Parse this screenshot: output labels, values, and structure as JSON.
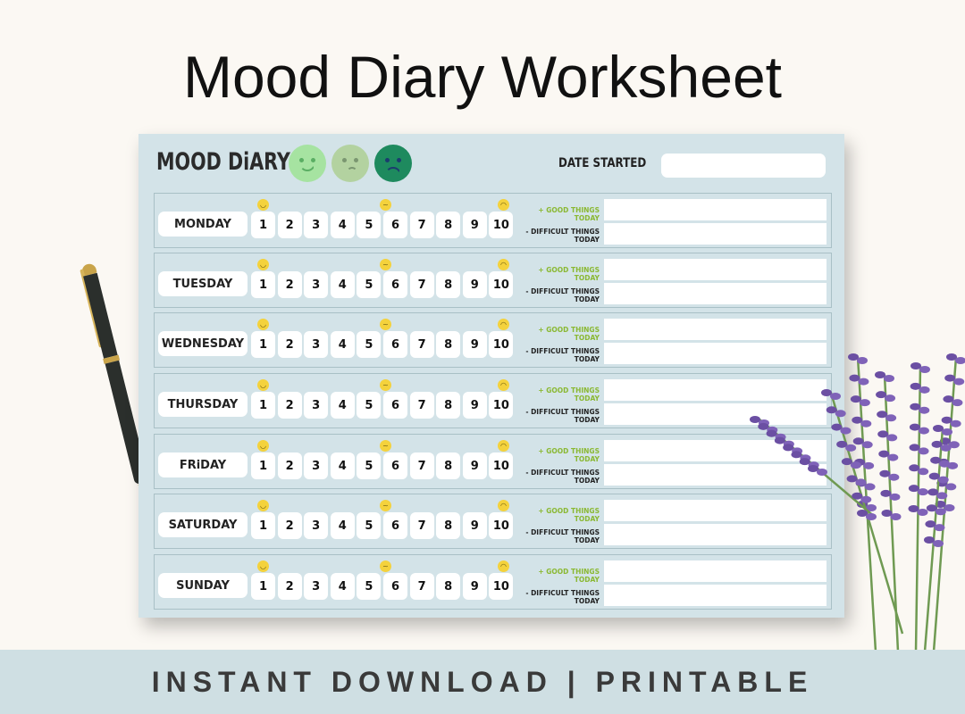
{
  "title": "Mood Diary Worksheet",
  "banner": "INSTANT DOWNLOAD | PRINTABLE",
  "sheet": {
    "heading": "MOOD DiARY",
    "faces": [
      {
        "name": "happy",
        "color": "#a6e3a1"
      },
      {
        "name": "unsure",
        "color": "#b3d2a0"
      },
      {
        "name": "sad",
        "color": "#1e8a5e"
      }
    ],
    "date_label": "DATE STARTED",
    "date_value": "",
    "good_label": "+ GOOD THINGS TODAY",
    "bad_label": "- DIFFICULT THINGS TODAY",
    "scale": [
      "1",
      "2",
      "3",
      "4",
      "5",
      "6",
      "7",
      "8",
      "9",
      "10"
    ],
    "scale_icons": {
      "1": "smile-emoji",
      "5": "unsure-emoji",
      "10": "frown-emoji"
    },
    "days": [
      "MONDAY",
      "TUESDAY",
      "WEDNESDAY",
      "THURSDAY",
      "FRiDAY",
      "SATURDAY",
      "SUNDAY"
    ]
  },
  "colors": {
    "sheet": "#d3e3e8",
    "band": "#cfdfe3",
    "good": "#8ab832",
    "emoji": "#f4d23c"
  }
}
